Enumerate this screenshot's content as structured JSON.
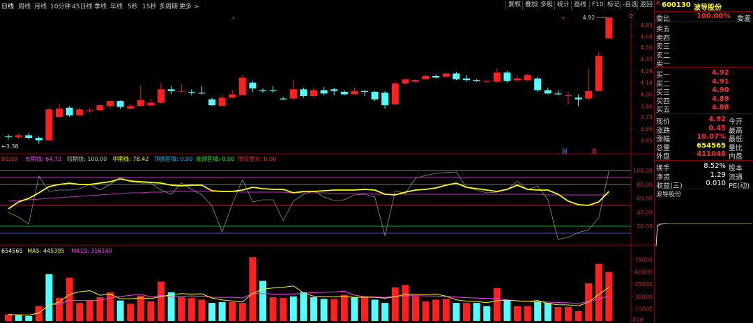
{
  "toolbar": {
    "periods": [
      "日线",
      "周线",
      "月线",
      "10分钟",
      "45日线",
      "季线",
      "年线",
      "5秒",
      "15秒",
      "多周期",
      "更多 >"
    ],
    "actions": [
      "复权",
      "叠加",
      "多股",
      "统计",
      "画线",
      "F10",
      "标记",
      "-自选",
      "返回"
    ]
  },
  "stock": {
    "code": "600130",
    "name": "波导股份",
    "code_prefix": "R"
  },
  "price_axis": [
    "4.83",
    "4.69",
    "4.56",
    "4.42",
    "4.28",
    "4.14",
    "4.00",
    "3.86",
    "3.73",
    "3.59",
    "3.45"
  ],
  "chart_labels": {
    "max_price": "4.92",
    "min_price": "3.38",
    "tag1": "财",
    "tag2": "涨"
  },
  "indicator": {
    "items": [
      {
        "text": "50.00",
        "color": "#ff3030"
      },
      {
        "text": "长期线: 64.72",
        "color": "#ff40ff"
      },
      {
        "text": "短期线: 100.00",
        "color": "#c0c0c0"
      },
      {
        "text": "中期线: 78.42",
        "color": "#ffff00"
      },
      {
        "text": "顶部区域: 0.00",
        "color": "#00c0ff"
      },
      {
        "text": "底部区域: 0.00",
        "color": "#00ff00"
      },
      {
        "text": "低位金叉: 0.00",
        "color": "#ff3030"
      }
    ],
    "axis": [
      "100.00",
      "80.00",
      "60.00",
      "40.00",
      "20.00"
    ]
  },
  "volume": {
    "legend": [
      {
        "text": "654565",
        "color": "#ffffff"
      },
      {
        "text": "MA5: 445395",
        "color": "#ffff00"
      },
      {
        "text": "MA10: 316140",
        "color": "#ff40ff"
      }
    ],
    "axis": [
      "75000",
      "60000",
      "45000",
      "30000",
      "15000"
    ],
    "unit": "X10"
  },
  "orderbook": {
    "ratio_label": "委比",
    "ratio_value": "100.00%",
    "diff_label": "委差",
    "sell": [
      {
        "label": "卖五"
      },
      {
        "label": "卖四"
      },
      {
        "label": "卖三"
      },
      {
        "label": "卖二"
      },
      {
        "label": "卖一"
      }
    ],
    "buy": [
      {
        "label": "买一",
        "price": "4.92"
      },
      {
        "label": "买二",
        "price": "4.91"
      },
      {
        "label": "买三",
        "price": "4.90"
      },
      {
        "label": "买四",
        "price": "4.89"
      },
      {
        "label": "买五",
        "price": "4.88"
      }
    ]
  },
  "quote": [
    {
      "l": "现价",
      "v": "4.92",
      "r": "今开"
    },
    {
      "l": "涨跌",
      "v": "0.45",
      "r": "最高"
    },
    {
      "l": "涨幅",
      "v": "10.07%",
      "r": "最低"
    },
    {
      "l": "总量",
      "v": "654565",
      "r": "量比"
    },
    {
      "l": "外盘",
      "v": "411048",
      "r": "内盘"
    }
  ],
  "quote2": [
    {
      "l": "换手",
      "v": "8.52%",
      "r": "股本"
    },
    {
      "l": "净资",
      "v": "1.29",
      "r": "流通"
    },
    {
      "l": "收益(三)",
      "v": "0.010",
      "r": "PE(动)"
    }
  ],
  "mini_chart": {
    "title": "波导股份"
  },
  "colors": {
    "up": "#ff2020",
    "down": "#54ffff",
    "ma_yellow": "#ffff00",
    "ma_pink": "#ff40ff",
    "grid": "#8b0000"
  },
  "chart_data": {
    "type": "candlestick",
    "ylim": [
      3.38,
      4.92
    ],
    "candles": [
      {
        "o": 3.5,
        "h": 3.52,
        "l": 3.46,
        "c": 3.49
      },
      {
        "o": 3.49,
        "h": 3.53,
        "l": 3.47,
        "c": 3.51
      },
      {
        "o": 3.51,
        "h": 3.54,
        "l": 3.46,
        "c": 3.48
      },
      {
        "o": 3.48,
        "h": 3.5,
        "l": 3.41,
        "c": 3.45
      },
      {
        "o": 3.45,
        "h": 3.83,
        "l": 3.45,
        "c": 3.82
      },
      {
        "o": 3.73,
        "h": 3.88,
        "l": 3.72,
        "c": 3.83
      },
      {
        "o": 3.84,
        "h": 3.86,
        "l": 3.73,
        "c": 3.75
      },
      {
        "o": 3.75,
        "h": 3.84,
        "l": 3.74,
        "c": 3.82
      },
      {
        "o": 3.8,
        "h": 3.84,
        "l": 3.78,
        "c": 3.81
      },
      {
        "o": 3.81,
        "h": 3.88,
        "l": 3.8,
        "c": 3.87
      },
      {
        "o": 3.86,
        "h": 3.93,
        "l": 3.83,
        "c": 3.92
      },
      {
        "o": 3.92,
        "h": 3.93,
        "l": 3.83,
        "c": 3.85
      },
      {
        "o": 3.83,
        "h": 3.88,
        "l": 3.82,
        "c": 3.86
      },
      {
        "o": 3.86,
        "h": 4.1,
        "l": 3.86,
        "c": 3.93
      },
      {
        "o": 3.87,
        "h": 3.95,
        "l": 3.85,
        "c": 3.9
      },
      {
        "o": 3.9,
        "h": 4.14,
        "l": 3.89,
        "c": 4.06
      },
      {
        "o": 4.06,
        "h": 4.1,
        "l": 4.0,
        "c": 4.04
      },
      {
        "o": 4.04,
        "h": 4.12,
        "l": 4.02,
        "c": 4.04
      },
      {
        "o": 4.03,
        "h": 4.06,
        "l": 3.99,
        "c": 4.02
      },
      {
        "o": 4.02,
        "h": 4.1,
        "l": 4.0,
        "c": 4.01
      },
      {
        "o": 3.94,
        "h": 3.96,
        "l": 3.86,
        "c": 3.87
      },
      {
        "o": 3.86,
        "h": 4.0,
        "l": 3.86,
        "c": 3.96
      },
      {
        "o": 3.96,
        "h": 4.05,
        "l": 3.95,
        "c": 4.0
      },
      {
        "o": 3.99,
        "h": 4.23,
        "l": 3.99,
        "c": 4.2
      },
      {
        "o": 4.14,
        "h": 4.16,
        "l": 4.03,
        "c": 4.07
      },
      {
        "o": 4.05,
        "h": 4.07,
        "l": 4.02,
        "c": 4.04
      },
      {
        "o": 4.05,
        "h": 4.1,
        "l": 4.02,
        "c": 4.04
      },
      {
        "o": 3.95,
        "h": 3.97,
        "l": 3.93,
        "c": 3.94
      },
      {
        "o": 3.95,
        "h": 4.17,
        "l": 3.93,
        "c": 4.06
      },
      {
        "o": 4.06,
        "h": 4.08,
        "l": 3.96,
        "c": 3.98
      },
      {
        "o": 3.98,
        "h": 4.08,
        "l": 3.97,
        "c": 4.05
      },
      {
        "o": 4.05,
        "h": 4.09,
        "l": 3.99,
        "c": 4.01
      },
      {
        "o": 4.06,
        "h": 4.08,
        "l": 3.99,
        "c": 4.04
      },
      {
        "o": 4.03,
        "h": 4.05,
        "l": 3.99,
        "c": 4.0
      },
      {
        "o": 4.0,
        "h": 4.08,
        "l": 4.0,
        "c": 4.04
      },
      {
        "o": 4.04,
        "h": 4.05,
        "l": 3.98,
        "c": 4.03
      },
      {
        "o": 4.03,
        "h": 4.04,
        "l": 3.92,
        "c": 3.94
      },
      {
        "o": 4.02,
        "h": 4.04,
        "l": 3.83,
        "c": 3.87
      },
      {
        "o": 3.88,
        "h": 4.16,
        "l": 3.87,
        "c": 4.13
      },
      {
        "o": 4.13,
        "h": 4.18,
        "l": 4.12,
        "c": 4.18
      },
      {
        "o": 4.15,
        "h": 4.18,
        "l": 4.14,
        "c": 4.17
      },
      {
        "o": 4.18,
        "h": 4.23,
        "l": 4.18,
        "c": 4.22
      },
      {
        "o": 4.22,
        "h": 4.24,
        "l": 4.19,
        "c": 4.2
      },
      {
        "o": 4.21,
        "h": 4.26,
        "l": 4.21,
        "c": 4.25
      },
      {
        "o": 4.25,
        "h": 4.27,
        "l": 4.17,
        "c": 4.18
      },
      {
        "o": 4.19,
        "h": 4.23,
        "l": 4.15,
        "c": 4.17
      },
      {
        "o": 4.17,
        "h": 4.18,
        "l": 4.15,
        "c": 4.16
      },
      {
        "o": 4.15,
        "h": 4.17,
        "l": 4.14,
        "c": 4.16
      },
      {
        "o": 4.15,
        "h": 4.31,
        "l": 4.14,
        "c": 4.26
      },
      {
        "o": 4.26,
        "h": 4.28,
        "l": 4.14,
        "c": 4.16
      },
      {
        "o": 4.17,
        "h": 4.22,
        "l": 4.15,
        "c": 4.19
      },
      {
        "o": 4.17,
        "h": 4.24,
        "l": 4.16,
        "c": 4.23
      },
      {
        "o": 4.19,
        "h": 4.21,
        "l": 4.03,
        "c": 4.05
      },
      {
        "o": 4.05,
        "h": 4.08,
        "l": 4.0,
        "c": 4.01
      },
      {
        "o": 4.01,
        "h": 4.05,
        "l": 3.99,
        "c": 4.0
      },
      {
        "o": 3.98,
        "h": 4.03,
        "l": 3.88,
        "c": 3.99
      },
      {
        "o": 3.96,
        "h": 4.0,
        "l": 3.86,
        "c": 3.94
      },
      {
        "o": 3.95,
        "h": 4.3,
        "l": 3.93,
        "c": 4.04
      },
      {
        "o": 4.04,
        "h": 4.51,
        "l": 4.04,
        "c": 4.46
      },
      {
        "o": 4.67,
        "h": 4.92,
        "l": 4.67,
        "c": 4.92
      }
    ],
    "indicator_long": [
      56,
      57,
      58,
      59,
      60,
      61,
      62,
      63,
      64,
      65,
      66,
      67,
      68,
      68,
      69,
      69,
      70,
      70,
      70,
      70,
      70,
      70,
      70,
      69,
      69,
      69,
      69,
      69,
      68,
      68,
      68,
      68,
      67,
      67,
      67,
      67,
      66,
      66,
      66,
      66,
      66,
      66,
      66,
      66,
      66,
      66,
      66,
      66,
      66,
      66,
      66,
      66,
      66,
      65,
      65,
      65,
      65,
      65,
      65,
      65
    ],
    "indicator_mid": [
      45,
      55,
      60,
      68,
      77,
      80,
      82,
      80,
      80,
      82,
      84,
      88,
      85,
      84,
      83,
      82,
      79,
      78,
      79,
      79,
      71,
      70,
      70,
      72,
      76,
      74,
      73,
      73,
      68,
      70,
      70,
      71,
      72,
      72,
      72,
      73,
      72,
      66,
      65,
      69,
      72,
      73,
      75,
      79,
      82,
      76,
      74,
      72,
      70,
      73,
      79,
      73,
      72,
      72,
      66,
      56,
      51,
      50,
      55,
      70
    ],
    "indicator_short": [
      40,
      33,
      23,
      92,
      70,
      72,
      72,
      74,
      80,
      72,
      80,
      90,
      84,
      82,
      82,
      72,
      66,
      82,
      73,
      65,
      49,
      12,
      52,
      87,
      55,
      58,
      58,
      28,
      56,
      66,
      71,
      62,
      57,
      58,
      65,
      66,
      62,
      6,
      71,
      67,
      89,
      93,
      96,
      97,
      98,
      76,
      72,
      68,
      69,
      73,
      85,
      72,
      78,
      58,
      1,
      4,
      11,
      15,
      32,
      100
    ],
    "volume": [
      8000,
      7000,
      6000,
      18000,
      57000,
      28000,
      53000,
      22000,
      25000,
      29000,
      35000,
      25000,
      21000,
      31000,
      24000,
      48000,
      35000,
      29000,
      28000,
      26000,
      22000,
      23000,
      23000,
      22000,
      78000,
      49000,
      29000,
      28000,
      30000,
      35000,
      29000,
      27000,
      27000,
      32000,
      29000,
      30000,
      26000,
      22000,
      41000,
      44000,
      30000,
      24000,
      26000,
      27000,
      22000,
      22000,
      22000,
      18000,
      40000,
      25000,
      18000,
      18000,
      24000,
      22000,
      17000,
      17000,
      12000,
      46000,
      70000,
      60000
    ],
    "vol_dir": [
      1,
      0,
      0,
      1,
      0,
      1,
      1,
      1,
      1,
      1,
      1,
      0,
      1,
      1,
      1,
      1,
      0,
      1,
      1,
      1,
      0,
      0,
      1,
      1,
      1,
      0,
      1,
      1,
      0,
      0,
      0,
      0,
      1,
      1,
      0,
      1,
      0,
      0,
      1,
      1,
      1,
      1,
      1,
      1,
      0,
      1,
      0,
      0,
      1,
      0,
      1,
      1,
      0,
      0,
      1,
      1,
      1,
      1,
      1,
      1
    ]
  }
}
